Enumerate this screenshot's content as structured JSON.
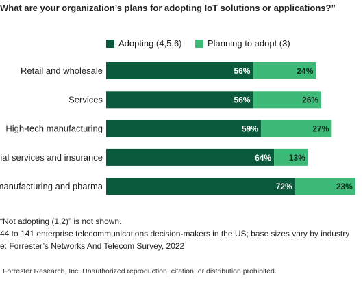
{
  "chart_data": {
    "type": "bar",
    "orientation": "horizontal",
    "stacked": true,
    "title": "What are your organization’s plans for adopting IoT solutions or applications?”",
    "categories": [
      "Retail and wholesale",
      "Services",
      "High-tech manufacturing",
      "cial services and insurance",
      "manufacturing and pharma"
    ],
    "series": [
      {
        "name": "Adopting (4,5,6)",
        "color": "#0b5a3c",
        "values": [
          56,
          56,
          59,
          64,
          72
        ],
        "labels": [
          "56%",
          "56%",
          "59%",
          "64%",
          "72%"
        ]
      },
      {
        "name": "Planning to adopt (3)",
        "color": "#3dba78",
        "values": [
          24,
          26,
          27,
          13,
          23
        ],
        "labels": [
          "24%",
          "26%",
          "27%",
          "13%",
          "23%"
        ]
      }
    ],
    "xlim": [
      0,
      100
    ],
    "grid": false,
    "legend_position": "top"
  },
  "notes": [
    "“Not adopting (1,2)” is not shown.",
    "44 to 141 enterprise telecommunications decision-makers in the US; base sizes vary by industry",
    "e: Forrester’s Networks And Telecom Survey, 2022"
  ],
  "copyright": "Forrester Research, Inc. Unauthorized reproduction, citation, or distribution prohibited."
}
